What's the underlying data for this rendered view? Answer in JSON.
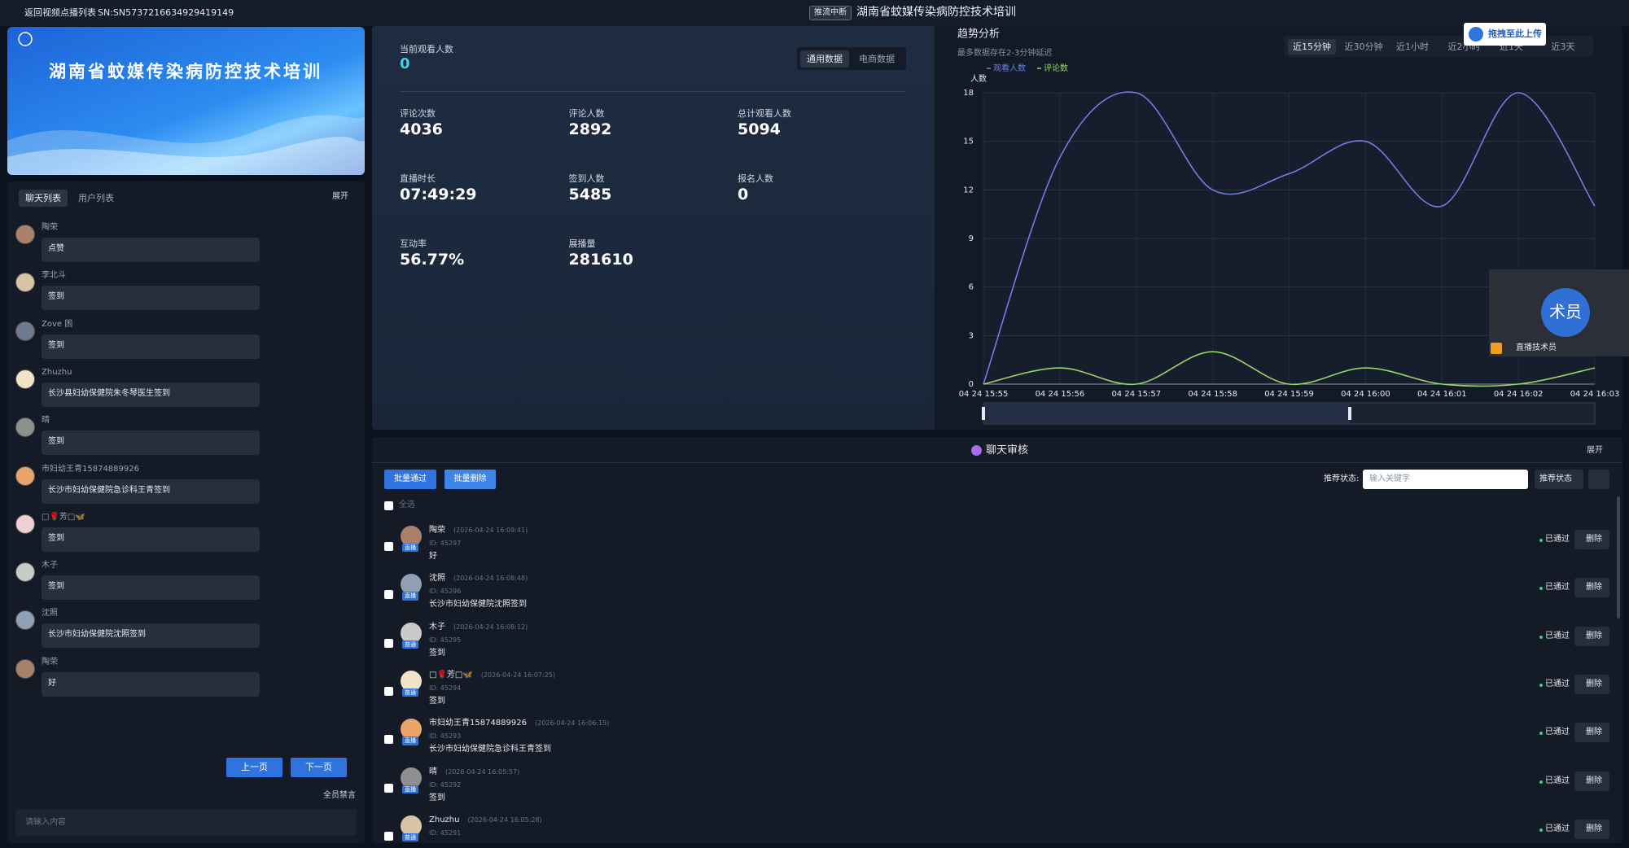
{
  "topbar": {
    "back": "返回视频点播列表",
    "sn": "SN:SN5737216634929419149",
    "status": "推流中断",
    "title": "湖南省蚊媒传染病防控技术培训"
  },
  "banner": {
    "title": "湖南省蚊媒传染病防控技术培训"
  },
  "upload_button": "拖拽至此上传",
  "chat_panel": {
    "tabs": [
      "聊天列表",
      "用户列表"
    ],
    "expand": "展开",
    "messages": [
      {
        "name": "陶荣",
        "text": "点赞"
      },
      {
        "name": "李北斗",
        "text": "签到"
      },
      {
        "name": "Zove 困",
        "text": "签到"
      },
      {
        "name": "Zhuzhu",
        "text": "长沙县妇幼保健院朱冬琴医生签到"
      },
      {
        "name": "晴",
        "text": "签到"
      },
      {
        "name": "市妇幼王青15874889926",
        "text": "长沙市妇幼保健院急诊科王青签到"
      },
      {
        "name": "□🌹芳□🦋",
        "text": "签到"
      },
      {
        "name": "木子",
        "text": "签到"
      },
      {
        "name": "沈照",
        "text": "长沙市妇幼保健院沈照签到"
      },
      {
        "name": "陶荣",
        "text": "好"
      }
    ],
    "prev": "上一页",
    "next": "下一页",
    "mute_all": "全员禁言",
    "input_placeholder": "请输入内容"
  },
  "stats": {
    "current_viewers": {
      "label": "当前观看人数",
      "value": 0
    },
    "tabs": [
      "通用数据",
      "电商数据"
    ],
    "items": [
      {
        "label": "评论次数",
        "value": 4036
      },
      {
        "label": "评论人数",
        "value": 2892
      },
      {
        "label": "总计观看人数",
        "value": 5094
      },
      {
        "label": "直播时长",
        "value": "07:49:29"
      },
      {
        "label": "签到人数",
        "value": 5485
      },
      {
        "label": "报名人数",
        "value": 0
      },
      {
        "label": "互动率",
        "value": "56.77%"
      },
      {
        "label": "展播量",
        "value": 281610
      }
    ]
  },
  "trend_tabs": [
    "近15分钟",
    "近30分钟",
    "近1小时",
    "近2小时",
    "近1天",
    "近3天"
  ],
  "chart_data": {
    "type": "line",
    "title": "趋势分析",
    "subtitle": "最多数据存在2-3分钟延迟",
    "y_label": "人数",
    "categories": [
      "04 24 15:55",
      "04 24 15:56",
      "04 24 15:57",
      "04 24 15:58",
      "04 24 15:59",
      "04 24 16:00",
      "04 24 16:01",
      "04 24 16:02",
      "04 24 16:03"
    ],
    "series": [
      {
        "name": "观看人数",
        "color": "#6f7fe0",
        "values": [
          0,
          14,
          18,
          12,
          13,
          15,
          11,
          18,
          11
        ]
      },
      {
        "name": "评论数",
        "color": "#9ad46a",
        "values": [
          0,
          1,
          0,
          2,
          0,
          1,
          0,
          0,
          1
        ]
      }
    ],
    "ylim": [
      0,
      18
    ],
    "yticks": [
      0,
      3,
      6,
      9,
      12,
      15,
      18
    ],
    "grid": true
  },
  "presenter": {
    "avatar": "术员",
    "name": "直播技术员"
  },
  "review": {
    "title": "聊天审核",
    "expand": "展开",
    "approve_all": "批量通过",
    "delete_all": "批量删除",
    "filter_label": "推荐状态:",
    "search_placeholder": "输入关键字",
    "status_select": "推荐状态",
    "select_all": "全选",
    "status_label": "已通过",
    "delete_label": "删除",
    "rows": [
      {
        "name": "陶荣",
        "time": "(2026-04-24 16:09:41)",
        "id": "ID: 45297",
        "text": "好",
        "tag": "直播"
      },
      {
        "name": "沈照",
        "time": "(2026-04-24 16:08:48)",
        "id": "ID: 45296",
        "text": "长沙市妇幼保健院沈照签到",
        "tag": "直播"
      },
      {
        "name": "木子",
        "time": "(2026-04-24 16:08:12)",
        "id": "ID: 45295",
        "text": "签到",
        "tag": "普通"
      },
      {
        "name": "□🌹芳□🦋",
        "time": "(2026-04-24 16:07:25)",
        "id": "ID: 45294",
        "text": "签到",
        "tag": "普通"
      },
      {
        "name": "市妇幼王青15874889926",
        "time": "(2026-04-24 16:06:15)",
        "id": "ID: 45293",
        "text": "长沙市妇幼保健院急诊科王青签到",
        "tag": "直播"
      },
      {
        "name": "晴",
        "time": "(2026-04-24 16:05:57)",
        "id": "ID: 45292",
        "text": "签到",
        "tag": "直播"
      },
      {
        "name": "Zhuzhu",
        "time": "(2026-04-24 16:05:28)",
        "id": "ID: 45291",
        "text": "",
        "tag": "普通"
      }
    ]
  }
}
